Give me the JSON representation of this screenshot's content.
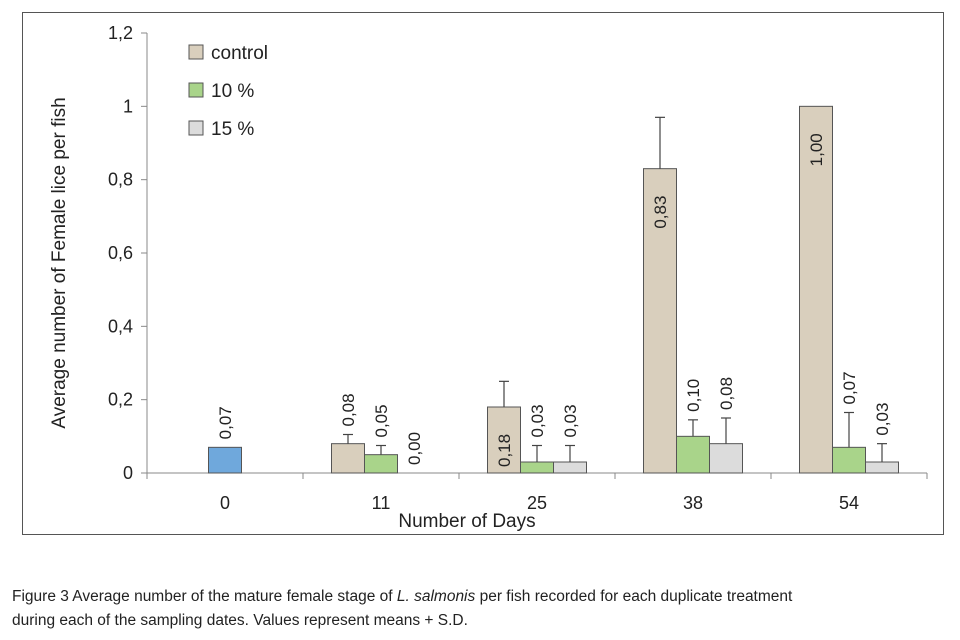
{
  "chart_data": {
    "type": "bar",
    "categories": [
      "0",
      "11",
      "25",
      "38",
      "54"
    ],
    "series": [
      {
        "name": "control",
        "color": "#d9cfbd",
        "values": [
          0.07,
          0.08,
          0.18,
          0.83,
          1.0
        ],
        "errors": [
          null,
          0.025,
          0.07,
          0.14,
          null
        ],
        "labels": [
          "0,07",
          "0,08",
          "0,18",
          "0,83",
          "1,00"
        ]
      },
      {
        "name": "10 %",
        "color": "#a9d48a",
        "values": [
          null,
          0.05,
          0.03,
          0.1,
          0.07
        ],
        "errors": [
          null,
          0.025,
          0.045,
          0.045,
          0.095
        ],
        "labels": [
          null,
          "0,05",
          "0,03",
          "0,10",
          "0,07"
        ]
      },
      {
        "name": "15 %",
        "color": "#dcdcdc",
        "values": [
          null,
          0.0,
          0.03,
          0.08,
          0.03
        ],
        "errors": [
          null,
          null,
          0.045,
          0.07,
          0.05
        ],
        "labels": [
          null,
          "0,00",
          "0,03",
          "0,08",
          "0,03"
        ]
      }
    ],
    "special_bar_color": "#6fa8dc",
    "yticks": [
      "0",
      "0,2",
      "0,4",
      "0,6",
      "0,8",
      "1",
      "1,2"
    ],
    "ylim": [
      0,
      1.2
    ],
    "xlabel": "Number of Days",
    "ylabel": "Average number of Female lice per fish",
    "legend_position": "top-left"
  },
  "caption": {
    "before": "Figure 3 Average number of the mature female stage of ",
    "italic": "L. salmonis",
    "after": " per fish recorded for each duplicate treatment",
    "line2": "during each of the sampling dates. Values represent means + S.D."
  }
}
